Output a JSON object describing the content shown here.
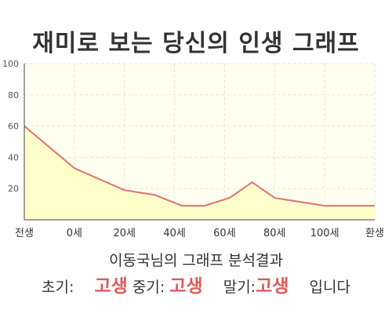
{
  "title": "재미로 보는 당신의 인생 그래프",
  "chart_data": {
    "type": "area",
    "x_labels": [
      "전생",
      "0세",
      "20세",
      "40세",
      "60세",
      "80세",
      "100세",
      "환생"
    ],
    "points": [
      {
        "x": 0,
        "y": 60
      },
      {
        "x": 1,
        "y": 33
      },
      {
        "x": 2,
        "y": 19
      },
      {
        "x": 2.6,
        "y": 16
      },
      {
        "x": 3.15,
        "y": 9
      },
      {
        "x": 3.6,
        "y": 9
      },
      {
        "x": 4.1,
        "y": 14
      },
      {
        "x": 4.55,
        "y": 24
      },
      {
        "x": 5,
        "y": 14
      },
      {
        "x": 6,
        "y": 9
      },
      {
        "x": 7,
        "y": 9
      }
    ],
    "y_ticks": [
      20,
      40,
      60,
      80,
      100
    ],
    "ylim": [
      0,
      100
    ],
    "grid": true,
    "line_color": "#e07070",
    "fill_color": "#ffffcc"
  },
  "analysis_title": "이동국님의 그래프 분석결과",
  "verdict": {
    "early_label": "초기:",
    "early_value": "고생",
    "mid_label": "중기:",
    "mid_value": "고생",
    "late_label": "말기:",
    "late_value": "고생",
    "ending": "입니다"
  }
}
